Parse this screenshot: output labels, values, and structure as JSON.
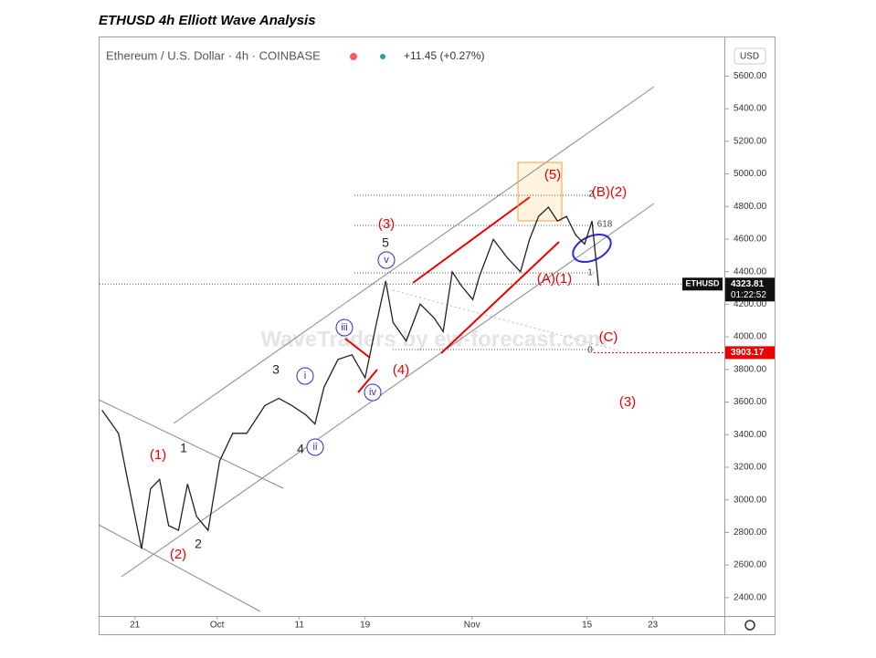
{
  "page_title": "ETHUSD 4h Elliott Wave Analysis",
  "chart_data": {
    "type": "line",
    "title": "Ethereum / U.S. Dollar · 4h · COINBASE",
    "change": "+11.45 (+0.27%)",
    "currency": "USD",
    "symbol": "ETHUSD",
    "last_price": 4323.81,
    "countdown": "01:22:52",
    "level_price": 3903.17,
    "watermark": "WaveTraders by ew-forecast.com",
    "color": "#222222",
    "x": [
      17.0,
      19.0,
      20.1,
      21.8,
      22.9,
      24.0,
      25.1,
      26.3,
      27.4,
      28.5,
      29.9,
      31.3,
      32.9,
      34.6,
      36.8,
      38.5,
      40.1,
      41.8,
      42.9,
      44.0,
      45.7,
      47.4,
      49.0,
      50.4,
      51.5,
      52.4,
      54.0,
      55.7,
      57.4,
      58.5,
      59.6,
      60.7,
      62.1,
      62.9,
      64.6,
      66.3,
      67.9,
      69.0,
      70.1,
      71.3,
      72.4,
      73.5,
      74.6,
      75.7,
      76.6,
      77.0,
      77.4
    ],
    "values": [
      3550,
      3408,
      3125,
      2700,
      3068,
      3125,
      2842,
      2813,
      3097,
      2898,
      2813,
      3238,
      3408,
      3408,
      3578,
      3623,
      3578,
      3521,
      3465,
      3691,
      3861,
      3890,
      3748,
      4088,
      4343,
      4088,
      3975,
      4201,
      4116,
      4032,
      4399,
      4314,
      4229,
      4371,
      4598,
      4485,
      4399,
      4598,
      4739,
      4796,
      4711,
      4739,
      4626,
      4569,
      4711,
      4513,
      4314
    ],
    "xlim": [
      16.7,
      92.7
    ],
    "xticks": [
      {
        "value": 21,
        "label": "21"
      },
      {
        "value": 31,
        "label": "Oct"
      },
      {
        "value": 41,
        "label": "11"
      },
      {
        "value": 49,
        "label": "19"
      },
      {
        "value": 62,
        "label": "Nov"
      },
      {
        "value": 76,
        "label": "15"
      },
      {
        "value": 84,
        "label": "23"
      }
    ],
    "ylim": [
      2287,
      5843
    ],
    "yticks": [
      {
        "value": 2400,
        "label": "2400.00"
      },
      {
        "value": 2600,
        "label": "2600.00"
      },
      {
        "value": 2800,
        "label": "2800.00"
      },
      {
        "value": 3000,
        "label": "3000.00"
      },
      {
        "value": 3200,
        "label": "3200.00"
      },
      {
        "value": 3400,
        "label": "3400.00"
      },
      {
        "value": 3600,
        "label": "3600.00"
      },
      {
        "value": 3800,
        "label": "3800.00"
      },
      {
        "value": 4000,
        "label": "4000.00"
      },
      {
        "value": 4200,
        "label": "4200.00"
      },
      {
        "value": 4400,
        "label": "4400.00"
      },
      {
        "value": 4600,
        "label": "4600.00"
      },
      {
        "value": 4800,
        "label": "4800.00"
      },
      {
        "value": 5000,
        "label": "5000.00"
      },
      {
        "value": 5200,
        "label": "5200.00"
      },
      {
        "value": 5400,
        "label": "5400.00"
      },
      {
        "value": 5600,
        "label": "5600.00"
      }
    ],
    "red_labels": [
      "(1)",
      "(2)",
      "(3)",
      "(4)",
      "(5)",
      "(B)(2)",
      "(A)(1)",
      "(C)",
      "(3)"
    ],
    "black_labels": [
      "1",
      "2",
      "3",
      "4",
      "5"
    ],
    "circled_labels": [
      "i",
      "ii",
      "iii",
      "iv",
      "v"
    ],
    "fib_labels": [
      "2",
      "618",
      "1",
      "0"
    ]
  }
}
